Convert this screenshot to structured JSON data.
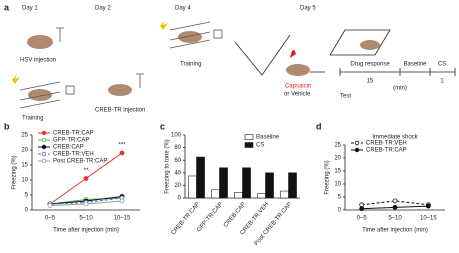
{
  "diagram": {
    "panel_a": "a",
    "day1": "Day 1",
    "day2": "Day 2",
    "day4": "Day 4",
    "day5": "Day 5",
    "hsv": "HSV injection",
    "training1": "Training",
    "creb_tr": "CREB-TR injection",
    "training2": "Training",
    "capsaicin": "Capsaicin",
    "vehicle": "or Vehicle",
    "drug_response": "Drug response",
    "baseline": "Baseline",
    "cs": "CS",
    "dur15": "15",
    "min": "(min)",
    "dur1": "1",
    "test": "Test",
    "panel_b": "b",
    "panel_c": "c",
    "panel_d": "d"
  },
  "chart_data": [
    {
      "type": "line",
      "categories": [
        "0–5",
        "5–10",
        "10–15"
      ],
      "ylabel": "Freezing (%)",
      "xlabel": "Time after injection (min)",
      "ylim": [
        0,
        25
      ],
      "yticks": [
        0,
        5,
        10,
        15,
        20,
        25
      ],
      "annotations": [
        {
          "text": "**",
          "index": 1
        },
        {
          "text": "***",
          "index": 2
        }
      ],
      "series": [
        {
          "name": "CREB-TR:CAP",
          "color": "#e8332a",
          "dashed": false,
          "filled": true,
          "values": [
            2,
            10.5,
            19
          ]
        },
        {
          "name": "GFP-TR:CAP",
          "color": "#4caf50",
          "dashed": false,
          "filled": false,
          "values": [
            2,
            3.5,
            4
          ]
        },
        {
          "name": "CREB:CAP",
          "color": "#111111",
          "dashed": false,
          "filled": true,
          "values": [
            2,
            3,
            4.5
          ]
        },
        {
          "name": "CREB-TR:VEH",
          "color": "#3b6fd1",
          "dashed": true,
          "filled": false,
          "values": [
            2,
            2.5,
            4
          ]
        },
        {
          "name": "Post CREB-TR:CAP",
          "color": "#999999",
          "dashed": false,
          "filled": false,
          "values": [
            1.5,
            2,
            3
          ]
        }
      ]
    },
    {
      "type": "bar",
      "categories": [
        "CREB-TR:CAP",
        "GFP-TR:CAP",
        "CREB:CAP",
        "CREB-TR:VEH",
        "Post CREB-TR:CAP"
      ],
      "ylabel": "Freezing to tone (%)",
      "ylim": [
        0,
        100
      ],
      "yticks": [
        0,
        20,
        40,
        60,
        80,
        100
      ],
      "series": [
        {
          "name": "Baseline",
          "color": "#ffffff",
          "values": [
            35,
            13,
            9,
            7,
            11
          ]
        },
        {
          "name": "CS",
          "color": "#111111",
          "values": [
            65,
            48,
            48,
            40,
            40
          ]
        }
      ]
    },
    {
      "type": "line",
      "title": "Immediate shock",
      "categories": [
        "0–5",
        "5–10",
        "10–15"
      ],
      "ylabel": "Freezing (%)",
      "xlabel": "Time after injection (min)",
      "ylim": [
        0,
        25
      ],
      "yticks": [
        0,
        5,
        10,
        15,
        20,
        25
      ],
      "series": [
        {
          "name": "CREB-TR:VEH",
          "color": "#111111",
          "dashed": true,
          "filled": false,
          "values": [
            2,
            3.5,
            2
          ]
        },
        {
          "name": "CREB-TR:CAP",
          "color": "#111111",
          "dashed": false,
          "filled": true,
          "values": [
            0.5,
            1,
            1.5
          ]
        }
      ]
    }
  ]
}
